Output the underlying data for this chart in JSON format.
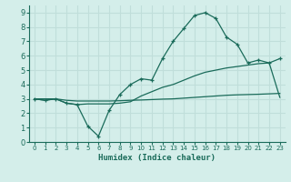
{
  "xlabel": "Humidex (Indice chaleur)",
  "xlim": [
    -0.5,
    23.5
  ],
  "ylim": [
    0,
    9.5
  ],
  "yticks": [
    0,
    1,
    2,
    3,
    4,
    5,
    6,
    7,
    8,
    9
  ],
  "xticks": [
    0,
    1,
    2,
    3,
    4,
    5,
    6,
    7,
    8,
    9,
    10,
    11,
    12,
    13,
    14,
    15,
    16,
    17,
    18,
    19,
    20,
    21,
    22,
    23
  ],
  "bg_color": "#d4eeea",
  "line_color": "#1a6b5a",
  "grid_color": "#c0deda",
  "series1_x": [
    0,
    1,
    2,
    3,
    4,
    5,
    6,
    7,
    8,
    9,
    10,
    11,
    12,
    13,
    14,
    15,
    16,
    17,
    18,
    19,
    20,
    21,
    22,
    23
  ],
  "series1_y": [
    3.0,
    2.9,
    3.0,
    2.7,
    2.6,
    1.1,
    0.4,
    2.2,
    3.3,
    4.0,
    4.4,
    4.3,
    5.8,
    7.0,
    7.9,
    8.8,
    9.0,
    8.6,
    7.3,
    6.8,
    5.5,
    5.7,
    5.5,
    5.8
  ],
  "series2_x": [
    0,
    1,
    2,
    3,
    4,
    5,
    6,
    7,
    8,
    9,
    10,
    11,
    12,
    13,
    14,
    15,
    16,
    17,
    18,
    19,
    20,
    21,
    22,
    23
  ],
  "series2_y": [
    3.0,
    3.0,
    3.0,
    2.9,
    2.85,
    2.85,
    2.85,
    2.85,
    2.87,
    2.9,
    2.92,
    2.95,
    2.98,
    3.0,
    3.05,
    3.1,
    3.15,
    3.2,
    3.25,
    3.28,
    3.3,
    3.32,
    3.35,
    3.38
  ],
  "series3_x": [
    0,
    1,
    2,
    3,
    4,
    5,
    6,
    7,
    8,
    9,
    10,
    11,
    12,
    13,
    14,
    15,
    16,
    17,
    18,
    19,
    20,
    21,
    22,
    23
  ],
  "series3_y": [
    3.0,
    2.9,
    3.0,
    2.7,
    2.6,
    2.65,
    2.65,
    2.65,
    2.7,
    2.8,
    3.2,
    3.5,
    3.8,
    4.0,
    4.3,
    4.6,
    4.85,
    5.0,
    5.15,
    5.25,
    5.35,
    5.45,
    5.5,
    3.1
  ]
}
